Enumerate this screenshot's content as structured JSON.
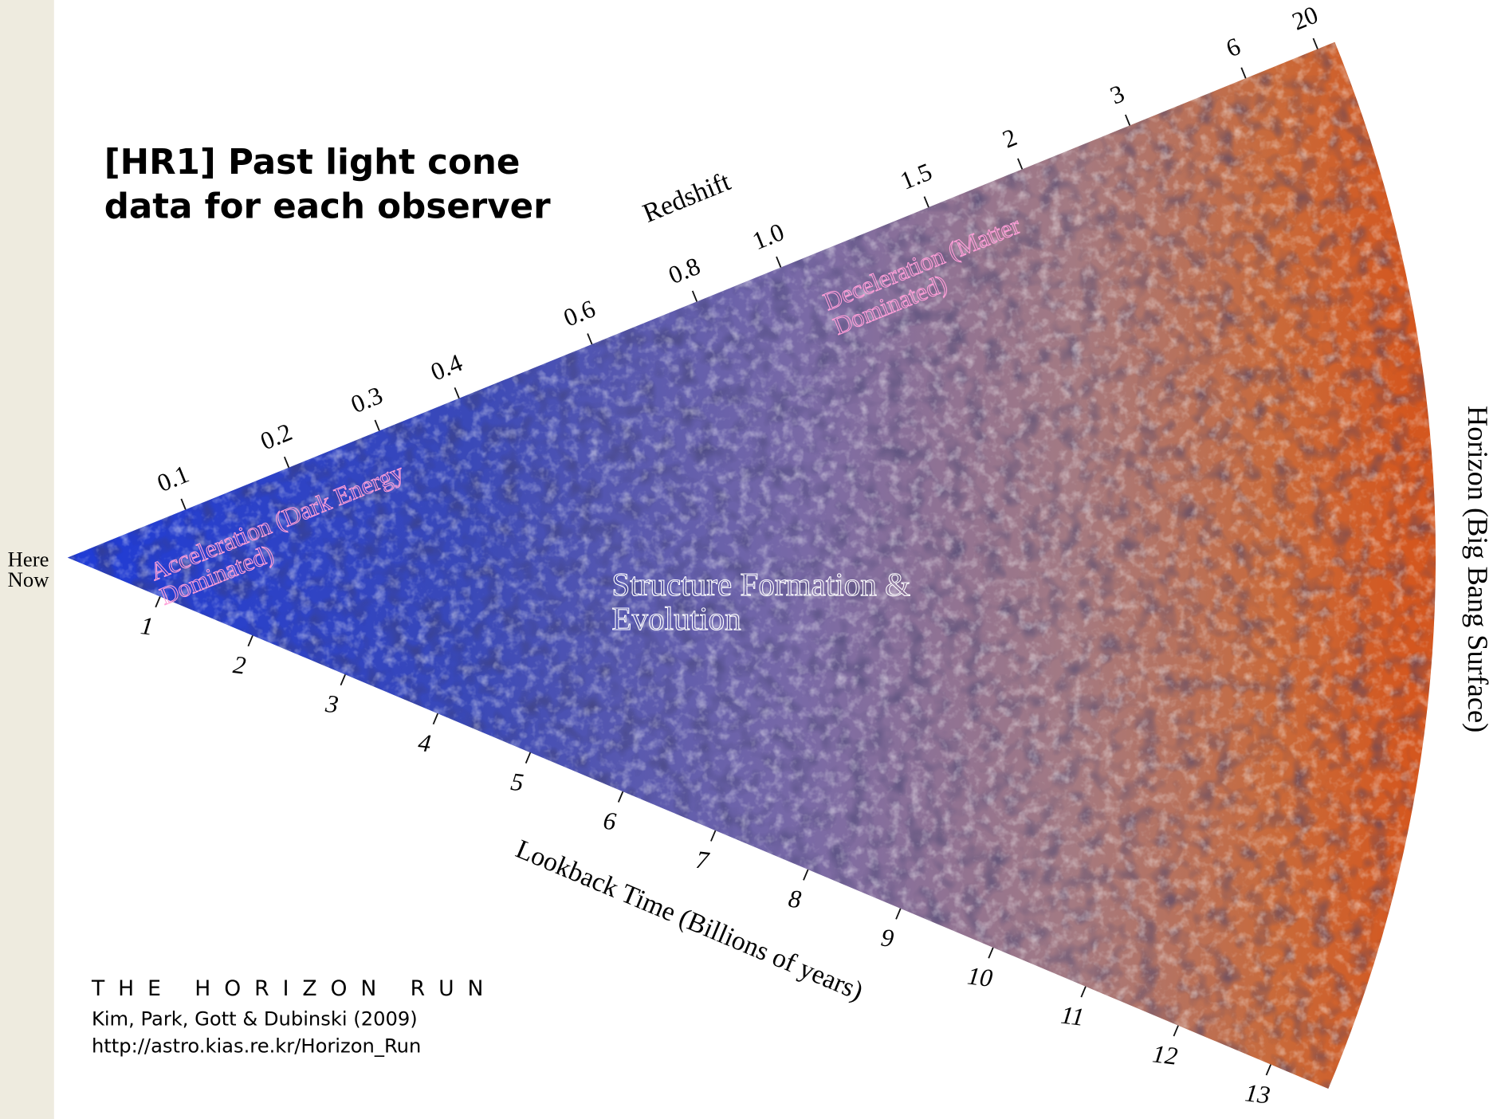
{
  "title": [
    "[HR1] Past light cone",
    "data for each observer"
  ],
  "redshift": {
    "label": "Redshift",
    "ticks": [
      0.1,
      0.2,
      0.3,
      0.4,
      0.6,
      0.8,
      {
        "value": 1,
        "label": "1.0"
      },
      1.5,
      2,
      3,
      6,
      20
    ]
  },
  "lookback": {
    "label": "Lookback Time (Billions of years)",
    "ticks": [
      1,
      2,
      3,
      4,
      5,
      6,
      7,
      8,
      9,
      10,
      11,
      12,
      13
    ]
  },
  "horizon_label": "Horizon (Big Bang Surface)",
  "here_now": [
    "Here",
    "Now"
  ],
  "regions": [
    {
      "lines": [
        "Acceleration (Dark Energy",
        "Dominated)"
      ]
    },
    {
      "lines": [
        "Deceleration (Matter",
        "Dominated)"
      ]
    },
    {
      "lines": [
        "Structure Formation &",
        "Evolution"
      ]
    }
  ],
  "credits": [
    "THE HORIZON RUN",
    "Kim, Park, Gott & Dubinski (2009)",
    "http://astro.kias.re.kr/Horizon_Run"
  ]
}
